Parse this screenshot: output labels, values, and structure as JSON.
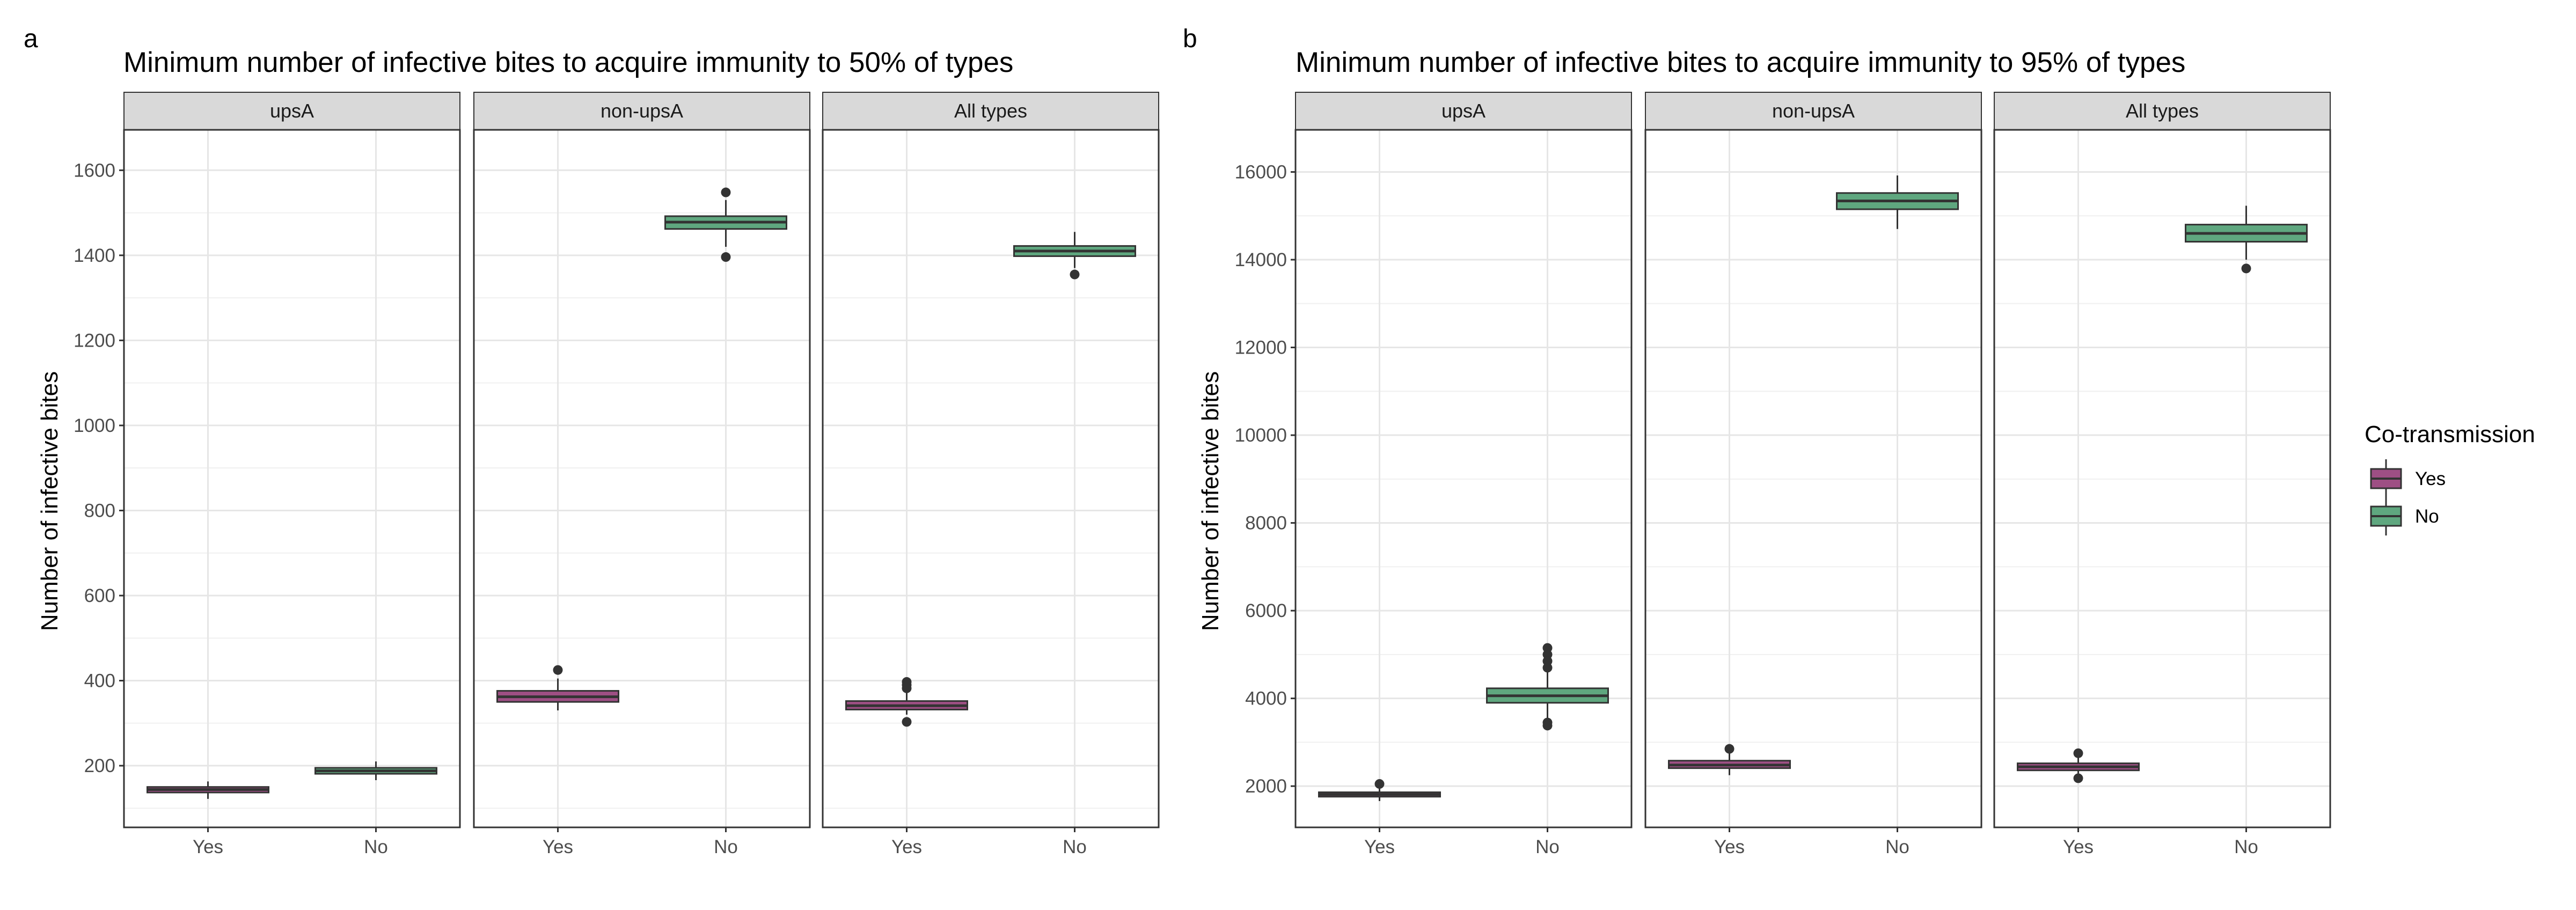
{
  "figure": {
    "panels": [
      {
        "letter": "a",
        "title": "Minimum number of infective bites to acquire immunity to 50% of types",
        "ylabel": "Number of infective bites"
      },
      {
        "letter": "b",
        "title": "Minimum number of infective bites to acquire immunity to 95% of types",
        "ylabel": "Number of infective bites"
      }
    ],
    "legend": {
      "title": "Co-transmission",
      "items": [
        {
          "label": "Yes",
          "color": "#9e4f84"
        },
        {
          "label": "No",
          "color": "#5fa77f"
        }
      ]
    }
  },
  "chart_data": [
    {
      "type": "box",
      "title": "Minimum number of infective bites to acquire immunity to 50% of types",
      "ylabel": "Number of infective bites",
      "xlabel": "",
      "grid": true,
      "ylim": [
        55,
        1695
      ],
      "yticks": [
        200,
        400,
        600,
        800,
        1000,
        1200,
        1400,
        1600
      ],
      "facets": [
        "upsA",
        "non-upsA",
        "All types"
      ],
      "categories": [
        "Yes",
        "No"
      ],
      "legend_position": "right",
      "boxes": [
        {
          "facet": "upsA",
          "group": "Yes",
          "whisker_low": 122,
          "q1": 137,
          "median": 144,
          "q3": 150,
          "whisker_high": 163,
          "outliers": []
        },
        {
          "facet": "upsA",
          "group": "No",
          "whisker_low": 166,
          "q1": 181,
          "median": 188,
          "q3": 195,
          "whisker_high": 210,
          "outliers": []
        },
        {
          "facet": "non-upsA",
          "group": "Yes",
          "whisker_low": 330,
          "q1": 350,
          "median": 362,
          "q3": 376,
          "whisker_high": 405,
          "outliers": [
            425
          ]
        },
        {
          "facet": "non-upsA",
          "group": "No",
          "whisker_low": 1420,
          "q1": 1462,
          "median": 1478,
          "q3": 1492,
          "whisker_high": 1530,
          "outliers": [
            1548,
            1396
          ]
        },
        {
          "facet": "All types",
          "group": "Yes",
          "whisker_low": 320,
          "q1": 332,
          "median": 341,
          "q3": 352,
          "whisker_high": 372,
          "outliers": [
            397,
            390,
            382,
            303
          ]
        },
        {
          "facet": "All types",
          "group": "No",
          "whisker_low": 1370,
          "q1": 1398,
          "median": 1410,
          "q3": 1422,
          "whisker_high": 1455,
          "outliers": [
            1355
          ]
        }
      ]
    },
    {
      "type": "box",
      "title": "Minimum number of infective bites to acquire immunity to 95% of types",
      "ylabel": "Number of infective bites",
      "xlabel": "",
      "grid": true,
      "ylim": [
        1060,
        16960
      ],
      "yticks": [
        2000,
        4000,
        6000,
        8000,
        10000,
        12000,
        14000,
        16000
      ],
      "facets": [
        "upsA",
        "non-upsA",
        "All types"
      ],
      "categories": [
        "Yes",
        "No"
      ],
      "legend_position": "right",
      "boxes": [
        {
          "facet": "upsA",
          "group": "Yes",
          "whisker_low": 1660,
          "q1": 1760,
          "median": 1810,
          "q3": 1860,
          "whisker_high": 1960,
          "outliers": [
            2050
          ]
        },
        {
          "facet": "upsA",
          "group": "No",
          "whisker_low": 3550,
          "q1": 3900,
          "median": 4060,
          "q3": 4230,
          "whisker_high": 4600,
          "outliers": [
            5150,
            5000,
            4850,
            4700,
            3450,
            3380
          ]
        },
        {
          "facet": "non-upsA",
          "group": "Yes",
          "whisker_low": 2250,
          "q1": 2410,
          "median": 2480,
          "q3": 2580,
          "whisker_high": 2760,
          "outliers": [
            2850
          ]
        },
        {
          "facet": "non-upsA",
          "group": "No",
          "whisker_low": 14700,
          "q1": 15150,
          "median": 15340,
          "q3": 15520,
          "whisker_high": 15920,
          "outliers": []
        },
        {
          "facet": "All types",
          "group": "Yes",
          "whisker_low": 2290,
          "q1": 2360,
          "median": 2440,
          "q3": 2520,
          "whisker_high": 2660,
          "outliers": [
            2750,
            2180
          ]
        },
        {
          "facet": "All types",
          "group": "No",
          "whisker_low": 14000,
          "q1": 14410,
          "median": 14600,
          "q3": 14800,
          "whisker_high": 15230,
          "outliers": [
            13800
          ]
        }
      ]
    }
  ]
}
